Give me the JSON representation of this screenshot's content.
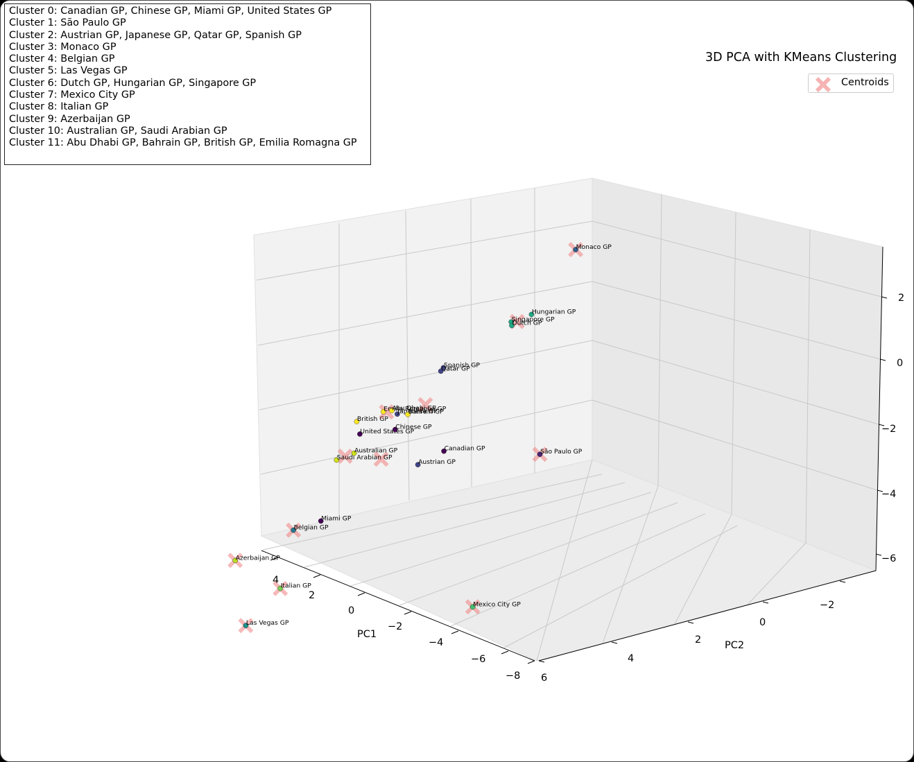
{
  "legend_text": {
    "lines": [
      "Cluster 0: Canadian GP, Chinese GP, Miami GP, United States GP",
      "Cluster 1: São Paulo GP",
      "Cluster 2: Austrian GP, Japanese GP, Qatar GP, Spanish GP",
      "Cluster 3: Monaco GP",
      "Cluster 4: Belgian GP",
      "Cluster 5: Las Vegas GP",
      "Cluster 6: Dutch GP, Hungarian GP, Singapore GP",
      "Cluster 7: Mexico City GP",
      "Cluster 8: Italian GP",
      "Cluster 9: Azerbaijan GP",
      "Cluster 10: Australian GP, Saudi Arabian GP",
      "Cluster 11: Abu Dhabi GP, Bahrain GP, British GP, Emilia Romagna GP"
    ]
  },
  "chart_data": {
    "type": "scatter",
    "projection": "3d",
    "title": "3D PCA with KMeans Clustering",
    "xlabel": "PC1",
    "ylabel": "PC2",
    "zlabel": "",
    "xticks": [
      "4",
      "2",
      "0",
      "−2",
      "−4",
      "−6",
      "−8"
    ],
    "yticks": [
      "6",
      "4",
      "2",
      "0",
      "−2"
    ],
    "zticks": [
      "2",
      "0",
      "−2",
      "−4",
      "−6"
    ],
    "legend": {
      "entries": [
        "Centroids"
      ],
      "position": "upper-right"
    },
    "centroid_color": "#f08080",
    "colormap": "viridis",
    "grid": true,
    "points": [
      {
        "label": "United States GP",
        "cluster": 0,
        "color": "#440154",
        "pc1": -1.5,
        "pc2": 5.0,
        "pc3": 2.0
      },
      {
        "label": "Chinese GP",
        "cluster": 0,
        "color": "#440154",
        "pc1": -2.5,
        "pc2": 3.4,
        "pc3": 0.8
      },
      {
        "label": "Miami GP",
        "cluster": 0,
        "color": "#440154",
        "pc1": -0.3,
        "pc2": 6.3,
        "pc3": 0.1
      },
      {
        "label": "Canadian GP",
        "cluster": 0,
        "color": "#440154",
        "pc1": -4.3,
        "pc2": 3.2,
        "pc3": -0.5
      },
      {
        "label": "São Paulo GP",
        "cluster": 1,
        "color": "#482475",
        "pc1": -7.8,
        "pc2": 2.6,
        "pc3": -1.8
      },
      {
        "label": "Spanish GP",
        "cluster": 2,
        "color": "#414487",
        "pc1": -4.2,
        "pc2": 2.8,
        "pc3": 2.2
      },
      {
        "label": "Qatar GP",
        "cluster": 2,
        "color": "#414487",
        "pc1": -4.1,
        "pc2": 2.8,
        "pc3": 2.1
      },
      {
        "label": "Japanese GP",
        "cluster": 2,
        "color": "#414487",
        "pc1": -2.6,
        "pc2": 3.5,
        "pc3": 1.4
      },
      {
        "label": "Austrian GP",
        "cluster": 2,
        "color": "#414487",
        "pc1": -3.4,
        "pc2": 3.6,
        "pc3": -0.5
      },
      {
        "label": "Monaco GP",
        "cluster": 3,
        "color": "#355f8d",
        "pc1": -8.0,
        "pc2": -2.9,
        "pc3": 1.5
      },
      {
        "label": "Belgian GP",
        "cluster": 4,
        "color": "#2a788e",
        "pc1": 0.8,
        "pc2": 6.0,
        "pc3": -0.2
      },
      {
        "label": "Las Vegas GP",
        "cluster": 5,
        "color": "#21918c",
        "pc1": 2.6,
        "pc2": 6.0,
        "pc3": -3.2
      },
      {
        "label": "Singapore GP",
        "cluster": 6,
        "color": "#22a884",
        "pc1": -6.3,
        "pc2": 0.6,
        "pc3": 1.8
      },
      {
        "label": "Dutch GP",
        "cluster": 6,
        "color": "#22a884",
        "pc1": -6.3,
        "pc2": 0.5,
        "pc3": 1.6
      },
      {
        "label": "Hungarian GP",
        "cluster": 6,
        "color": "#22a884",
        "pc1": -7.0,
        "pc2": 0.3,
        "pc3": 1.7
      },
      {
        "label": "Mexico City GP",
        "cluster": 7,
        "color": "#44bf70",
        "pc1": -5.6,
        "pc2": 4.2,
        "pc3": -5.6
      },
      {
        "label": "Italian GP",
        "cluster": 8,
        "color": "#7ad151",
        "pc1": 1.4,
        "pc2": 5.5,
        "pc3": -2.5
      },
      {
        "label": "Azerbaijan GP",
        "cluster": 9,
        "color": "#bddf26",
        "pc1": 3.0,
        "pc2": 6.0,
        "pc3": -0.8
      },
      {
        "label": "Saudi Arabian GP",
        "cluster": 10,
        "color": "#d2e21b",
        "pc1": -0.6,
        "pc2": 4.9,
        "pc3": 1.2
      },
      {
        "label": "Australian GP",
        "cluster": 10,
        "color": "#d2e21b",
        "pc1": -1.2,
        "pc2": 4.6,
        "pc3": 1.1
      },
      {
        "label": "British GP",
        "cluster": 11,
        "color": "#fde725",
        "pc1": -1.3,
        "pc2": 4.6,
        "pc3": 2.2
      },
      {
        "label": "Emilia Romagna GP",
        "cluster": 11,
        "color": "#fde725",
        "pc1": -2.2,
        "pc2": 4.1,
        "pc3": 2.0
      },
      {
        "label": "Abu Dhabi GP",
        "cluster": 11,
        "color": "#fde725",
        "pc1": -2.5,
        "pc2": 4.0,
        "pc3": 1.9
      },
      {
        "label": "Bahrain GP",
        "cluster": 11,
        "color": "#fde725",
        "pc1": -3.0,
        "pc2": 3.5,
        "pc3": 1.3
      }
    ],
    "centroids": [
      {
        "cluster": 0,
        "pc1": -2.2,
        "pc2": 4.5,
        "pc3": 0.6
      },
      {
        "cluster": 1,
        "pc1": -7.8,
        "pc2": 2.6,
        "pc3": -1.8
      },
      {
        "cluster": 2,
        "pc1": -3.6,
        "pc2": 3.2,
        "pc3": 1.3
      },
      {
        "cluster": 3,
        "pc1": -8.0,
        "pc2": -2.9,
        "pc3": 1.5
      },
      {
        "cluster": 4,
        "pc1": 0.8,
        "pc2": 6.0,
        "pc3": -0.2
      },
      {
        "cluster": 5,
        "pc1": 2.6,
        "pc2": 6.0,
        "pc3": -3.2
      },
      {
        "cluster": 6,
        "pc1": -6.5,
        "pc2": 0.5,
        "pc3": 1.7
      },
      {
        "cluster": 7,
        "pc1": -5.6,
        "pc2": 4.2,
        "pc3": -5.6
      },
      {
        "cluster": 8,
        "pc1": 1.4,
        "pc2": 5.5,
        "pc3": -2.5
      },
      {
        "cluster": 9,
        "pc1": 3.0,
        "pc2": 6.0,
        "pc3": -0.8
      },
      {
        "cluster": 10,
        "pc1": -0.9,
        "pc2": 4.8,
        "pc3": 1.2
      },
      {
        "cluster": 11,
        "pc1": -2.3,
        "pc2": 4.0,
        "pc3": 1.9
      }
    ]
  }
}
